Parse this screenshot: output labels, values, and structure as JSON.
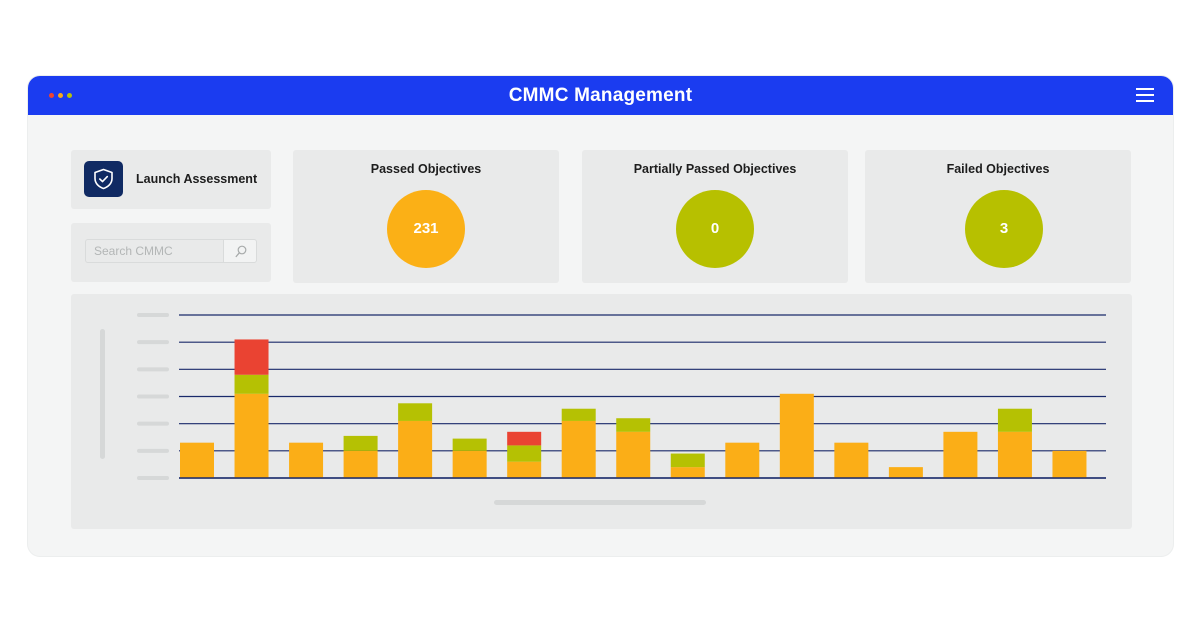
{
  "window": {
    "title": "CMMC Management",
    "dot_colors": [
      "#f0442f",
      "#f7a81b",
      "#b7c209"
    ],
    "header_color": "#1b3cf0"
  },
  "actions": {
    "launch_label": "Launch Assessment",
    "launch_icon": "shield-check-icon",
    "search_placeholder": "Search CMMC",
    "search_icon": "search-icon"
  },
  "stats": [
    {
      "title": "Passed Objectives",
      "value": "231",
      "color": "#fbb016"
    },
    {
      "title": "Partially Passed Objectives",
      "value": "0",
      "color": "#b7c000"
    },
    {
      "title": "Failed Objectives",
      "value": "3",
      "color": "#b7c000"
    }
  ],
  "chart_data": {
    "type": "bar",
    "stacked": true,
    "grid": true,
    "ylim": [
      0,
      6
    ],
    "categories": [
      "",
      "",
      "",
      "",
      "",
      "",
      "",
      "",
      "",
      "",
      "",
      "",
      "",
      "",
      "",
      "",
      ""
    ],
    "series": [
      {
        "color": "#fbae17",
        "values": [
          1.3,
          3.1,
          1.3,
          1.0,
          2.1,
          1.0,
          0.6,
          2.1,
          1.7,
          0.4,
          1.3,
          3.1,
          1.3,
          0.4,
          1.7,
          1.7,
          1.0
        ]
      },
      {
        "color": "#b5c103",
        "values": [
          0,
          0.7,
          0,
          0.55,
          0.65,
          0.45,
          0.6,
          0.45,
          0.5,
          0.5,
          0,
          0,
          0,
          0,
          0,
          0.85,
          0
        ]
      },
      {
        "color": "#ea4332",
        "values": [
          0,
          1.3,
          0,
          0,
          0,
          0,
          0.5,
          0,
          0,
          0,
          0,
          0,
          0,
          0,
          0,
          0,
          0
        ]
      }
    ]
  }
}
